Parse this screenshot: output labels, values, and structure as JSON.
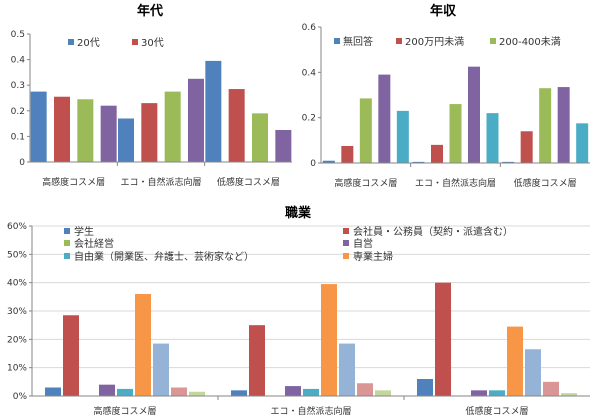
{
  "chart_data": [
    {
      "type": "bar",
      "title": "年代",
      "categories": [
        "高感度コスメ層",
        "エコ・自然派志向層",
        "低感度コスメ層"
      ],
      "ylim": [
        0,
        0.5
      ],
      "yticks": [
        "0",
        "0.1",
        "0.2",
        "0.3",
        "0.4",
        "0.5"
      ],
      "legend": "top-left",
      "grid": false,
      "series": [
        {
          "name": "20代",
          "color": "#4f81bd",
          "values": [
            0.275,
            0.17,
            0.395
          ]
        },
        {
          "name": "30代",
          "color": "#c0504d",
          "values": [
            0.255,
            0.23,
            0.285
          ]
        },
        {
          "name": "",
          "color": "#9bbb59",
          "values": [
            0.245,
            0.275,
            0.19
          ]
        },
        {
          "name": "",
          "color": "#8064a2",
          "values": [
            0.22,
            0.325,
            0.125
          ]
        }
      ]
    },
    {
      "type": "bar",
      "title": "年収",
      "categories": [
        "高感度コスメ層",
        "エコ・自然派志向層",
        "低感度コスメ層"
      ],
      "ylim": [
        0,
        0.6
      ],
      "yticks": [
        "0",
        "0.2",
        "0.4",
        "0.6"
      ],
      "legend": "top",
      "grid": false,
      "series": [
        {
          "name": "無回答",
          "color": "#4f81bd",
          "values": [
            0.01,
            0.005,
            0.005
          ]
        },
        {
          "name": "200万円未満",
          "color": "#c0504d",
          "values": [
            0.075,
            0.08,
            0.14
          ]
        },
        {
          "name": "200-400未満",
          "color": "#9bbb59",
          "values": [
            0.285,
            0.26,
            0.33
          ]
        },
        {
          "name": "",
          "color": "#8064a2",
          "values": [
            0.39,
            0.425,
            0.335
          ]
        },
        {
          "name": "",
          "color": "#4bacc6",
          "values": [
            0.23,
            0.22,
            0.175
          ]
        }
      ]
    },
    {
      "type": "bar",
      "title": "職業",
      "categories": [
        "高感度コスメ層",
        "エコ・自然派志向層",
        "低感度コスメ層"
      ],
      "ylim": [
        0,
        60
      ],
      "yticks": [
        "0%",
        "10%",
        "20%",
        "30%",
        "40%",
        "50%",
        "60%"
      ],
      "legend": "top",
      "grid": true,
      "series": [
        {
          "name": "学生",
          "color": "#4f81bd",
          "values": [
            3,
            2,
            6
          ]
        },
        {
          "name": "会社員・公務員（契約・派遣含む）",
          "color": "#c0504d",
          "values": [
            28.5,
            25,
            40
          ]
        },
        {
          "name": "会社経営",
          "color": "#9bbb59",
          "values": [
            0,
            0,
            0
          ]
        },
        {
          "name": "自営",
          "color": "#8064a2",
          "values": [
            4,
            3.5,
            2
          ]
        },
        {
          "name": "自由業（開業医、弁護士、芸術家など）",
          "color": "#4bacc6",
          "values": [
            2.5,
            2.5,
            2
          ]
        },
        {
          "name": "専業主婦",
          "color": "#f79646",
          "values": [
            36,
            39.5,
            24.5
          ]
        },
        {
          "name": "",
          "color": "#95b3d7",
          "values": [
            18.5,
            18.5,
            16.5
          ]
        },
        {
          "name": "",
          "color": "#d99694",
          "values": [
            3,
            4.5,
            5
          ]
        },
        {
          "name": "",
          "color": "#c3d69b",
          "values": [
            1.5,
            2,
            1
          ]
        }
      ]
    }
  ]
}
